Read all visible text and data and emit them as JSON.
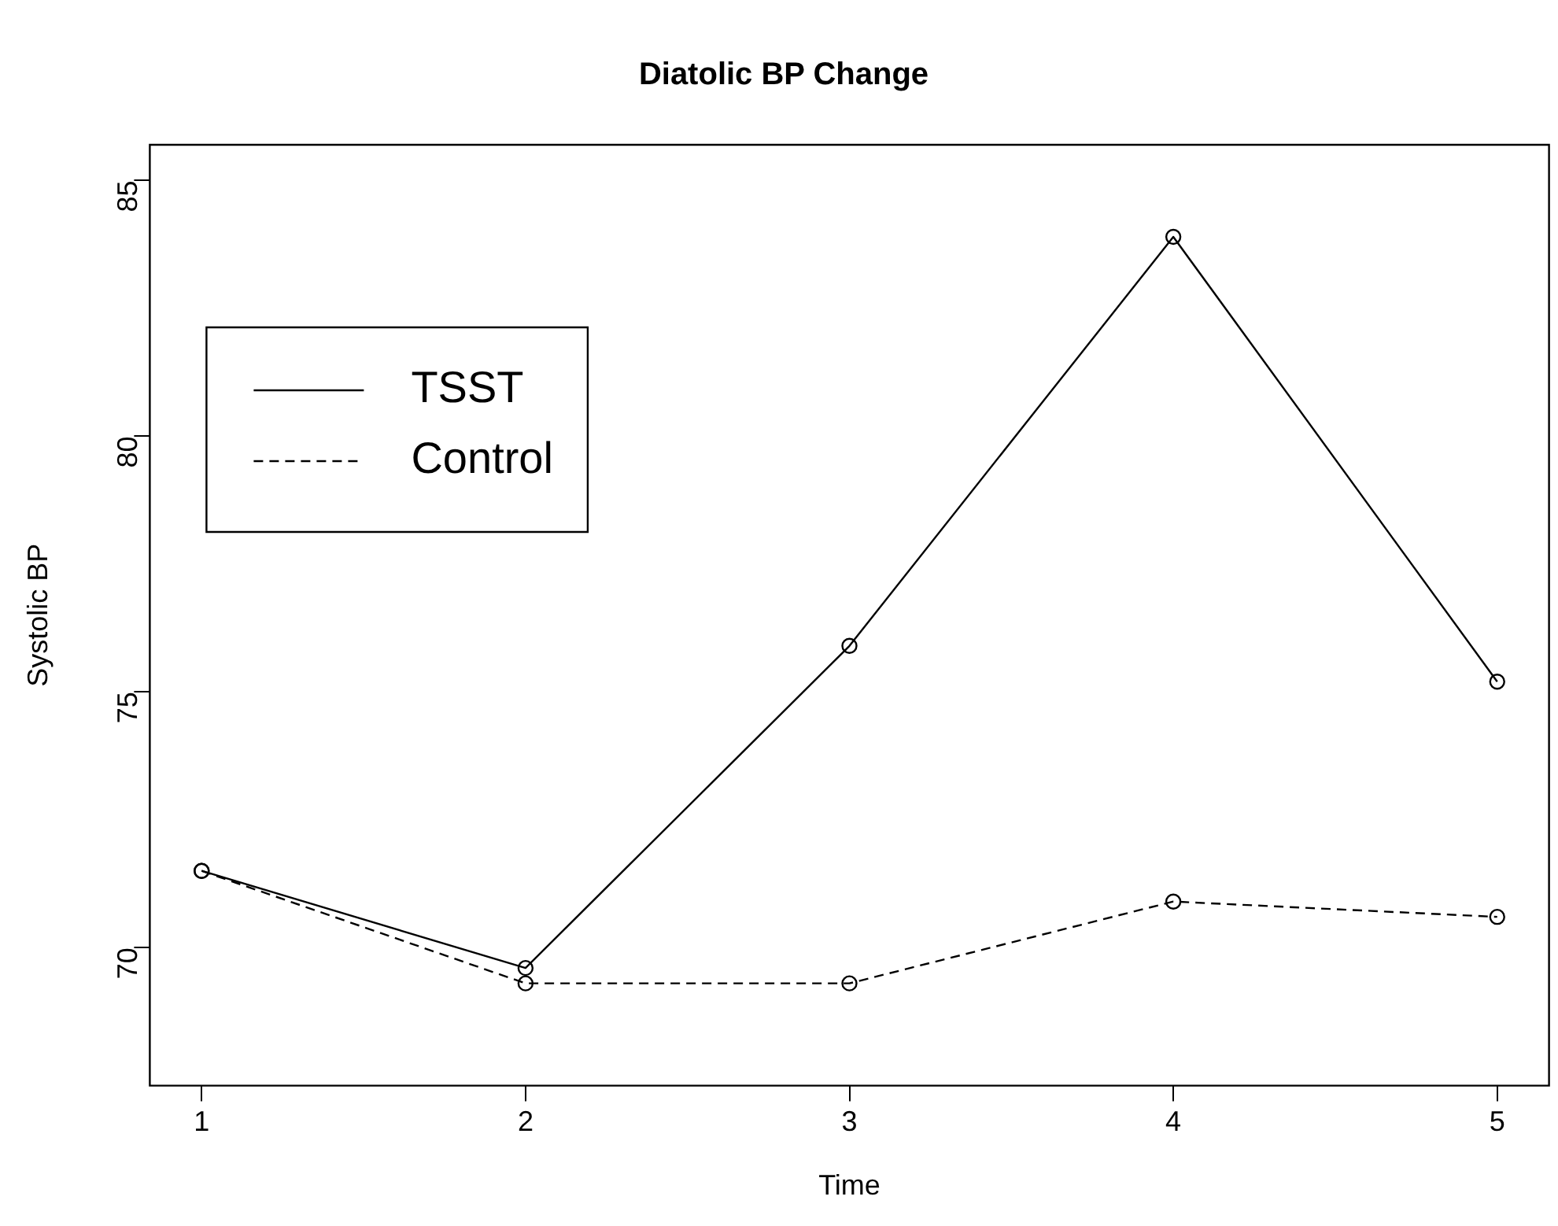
{
  "chart_data": {
    "type": "line",
    "title": "Diatolic BP Change",
    "xlabel": "Time",
    "ylabel": "Systolic BP",
    "x": [
      1,
      2,
      3,
      4,
      5
    ],
    "series": [
      {
        "name": "TSST",
        "color": "#000000",
        "line_style": "solid",
        "values": [
          71.5,
          69.6,
          75.9,
          83.9,
          75.2
        ]
      },
      {
        "name": "Control",
        "color": "#000000",
        "line_style": "dashed",
        "values": [
          71.5,
          69.3,
          69.3,
          70.9,
          70.6
        ]
      }
    ],
    "xlim": [
      0.84,
      5.16
    ],
    "xticks": [
      1,
      2,
      3,
      4,
      5
    ],
    "ylim": [
      67.3,
      85.7
    ],
    "yticks": [
      70,
      75,
      80,
      85
    ],
    "marker": "circle",
    "grid": false,
    "legend": "top left"
  }
}
